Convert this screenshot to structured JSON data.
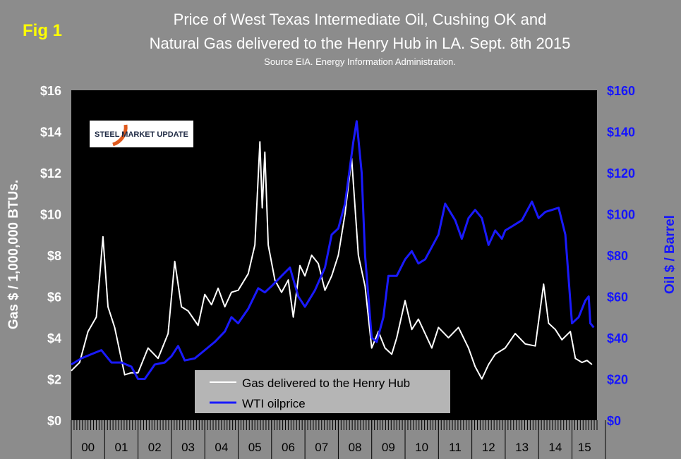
{
  "fig_label": "Fig 1",
  "title_line1": "Price of West Texas Intermediate Oil, Cushing OK and",
  "title_line2": "Natural Gas delivered to the Henry Hub in LA. Sept. 8th 2015",
  "source": "Source EIA. Energy Information Administration.",
  "logo": {
    "text": "STEEL MARKET UPDATE",
    "accent": "#e05a1e"
  },
  "colors": {
    "background": "#8c8c8c",
    "plot": "#000000",
    "gas": "#ffffff",
    "oil": "#1a1aff",
    "fig_label": "#ffff00",
    "right_axis": "#1515ff"
  },
  "chart_data": {
    "type": "line",
    "title": "Price of West Texas Intermediate Oil, Cushing OK and Natural Gas delivered to the Henry Hub in LA. Sept. 8th 2015",
    "xlabel": "",
    "ylabel_left": "Gas $ / 1,000,000 BTUs.",
    "ylabel_right": "Oil $ / Barrel",
    "ylim_left": [
      0,
      16
    ],
    "ylim_right": [
      0,
      160
    ],
    "yticks_left": [
      "$0",
      "$2",
      "$4",
      "$6",
      "$8",
      "$10",
      "$12",
      "$14",
      "$16"
    ],
    "yticks_right": [
      "$0",
      "$20",
      "$40",
      "$60",
      "$80",
      "$100",
      "$120",
      "$140",
      "$160"
    ],
    "x_categories": [
      "00",
      "01",
      "02",
      "03",
      "04",
      "05",
      "06",
      "07",
      "08",
      "09",
      "10",
      "11",
      "12",
      "13",
      "14",
      "15"
    ],
    "x_range": [
      2000.0,
      2015.75
    ],
    "grid": false,
    "legend_position": "bottom-center",
    "series": [
      {
        "name": "Gas delivered to the Henry Hub",
        "axis": "left",
        "color": "#ffffff",
        "points": [
          [
            2000.0,
            2.4
          ],
          [
            2000.25,
            2.8
          ],
          [
            2000.5,
            4.3
          ],
          [
            2000.75,
            5.0
          ],
          [
            2000.95,
            8.9
          ],
          [
            2001.1,
            5.5
          ],
          [
            2001.3,
            4.5
          ],
          [
            2001.6,
            2.2
          ],
          [
            2001.8,
            2.3
          ],
          [
            2002.0,
            2.3
          ],
          [
            2002.3,
            3.5
          ],
          [
            2002.6,
            3.0
          ],
          [
            2002.9,
            4.2
          ],
          [
            2003.1,
            7.7
          ],
          [
            2003.3,
            5.5
          ],
          [
            2003.5,
            5.3
          ],
          [
            2003.8,
            4.6
          ],
          [
            2004.0,
            6.1
          ],
          [
            2004.2,
            5.6
          ],
          [
            2004.4,
            6.4
          ],
          [
            2004.6,
            5.5
          ],
          [
            2004.8,
            6.2
          ],
          [
            2005.0,
            6.3
          ],
          [
            2005.3,
            7.1
          ],
          [
            2005.5,
            8.5
          ],
          [
            2005.65,
            13.5
          ],
          [
            2005.72,
            10.3
          ],
          [
            2005.8,
            13.0
          ],
          [
            2005.9,
            8.5
          ],
          [
            2006.1,
            6.8
          ],
          [
            2006.3,
            6.2
          ],
          [
            2006.5,
            6.8
          ],
          [
            2006.65,
            5.0
          ],
          [
            2006.85,
            7.5
          ],
          [
            2007.0,
            7.0
          ],
          [
            2007.2,
            8.0
          ],
          [
            2007.4,
            7.6
          ],
          [
            2007.6,
            6.3
          ],
          [
            2007.8,
            7.0
          ],
          [
            2008.0,
            8.0
          ],
          [
            2008.2,
            10.0
          ],
          [
            2008.4,
            12.7
          ],
          [
            2008.6,
            8.0
          ],
          [
            2008.8,
            6.5
          ],
          [
            2009.0,
            3.5
          ],
          [
            2009.2,
            4.3
          ],
          [
            2009.4,
            3.5
          ],
          [
            2009.6,
            3.2
          ],
          [
            2009.75,
            4.0
          ],
          [
            2010.0,
            5.8
          ],
          [
            2010.2,
            4.4
          ],
          [
            2010.4,
            4.9
          ],
          [
            2010.6,
            4.2
          ],
          [
            2010.8,
            3.5
          ],
          [
            2011.0,
            4.5
          ],
          [
            2011.3,
            4.0
          ],
          [
            2011.6,
            4.5
          ],
          [
            2011.9,
            3.5
          ],
          [
            2012.1,
            2.6
          ],
          [
            2012.3,
            2.0
          ],
          [
            2012.5,
            2.7
          ],
          [
            2012.7,
            3.2
          ],
          [
            2013.0,
            3.5
          ],
          [
            2013.3,
            4.2
          ],
          [
            2013.6,
            3.7
          ],
          [
            2013.9,
            3.6
          ],
          [
            2014.15,
            6.6
          ],
          [
            2014.3,
            4.7
          ],
          [
            2014.5,
            4.4
          ],
          [
            2014.7,
            3.9
          ],
          [
            2014.95,
            4.3
          ],
          [
            2015.1,
            3.0
          ],
          [
            2015.3,
            2.8
          ],
          [
            2015.45,
            2.9
          ],
          [
            2015.6,
            2.7
          ]
        ]
      },
      {
        "name": "WTI oilprice",
        "axis": "right",
        "color": "#1a1aff",
        "points": [
          [
            2000.0,
            27
          ],
          [
            2000.3,
            30
          ],
          [
            2000.6,
            32
          ],
          [
            2000.9,
            34
          ],
          [
            2001.2,
            28
          ],
          [
            2001.5,
            28
          ],
          [
            2001.8,
            26
          ],
          [
            2002.0,
            20
          ],
          [
            2002.2,
            20
          ],
          [
            2002.5,
            27
          ],
          [
            2002.8,
            28
          ],
          [
            2003.0,
            31
          ],
          [
            2003.2,
            36
          ],
          [
            2003.4,
            29
          ],
          [
            2003.7,
            30
          ],
          [
            2004.0,
            34
          ],
          [
            2004.3,
            38
          ],
          [
            2004.6,
            43
          ],
          [
            2004.8,
            50
          ],
          [
            2005.0,
            47
          ],
          [
            2005.3,
            54
          ],
          [
            2005.6,
            64
          ],
          [
            2005.8,
            62
          ],
          [
            2006.0,
            65
          ],
          [
            2006.3,
            70
          ],
          [
            2006.55,
            74
          ],
          [
            2006.8,
            60
          ],
          [
            2007.0,
            55
          ],
          [
            2007.3,
            63
          ],
          [
            2007.6,
            74
          ],
          [
            2007.8,
            90
          ],
          [
            2008.0,
            93
          ],
          [
            2008.2,
            105
          ],
          [
            2008.45,
            135
          ],
          [
            2008.55,
            145
          ],
          [
            2008.7,
            120
          ],
          [
            2008.8,
            80
          ],
          [
            2008.9,
            60
          ],
          [
            2009.0,
            40
          ],
          [
            2009.15,
            38
          ],
          [
            2009.35,
            50
          ],
          [
            2009.5,
            70
          ],
          [
            2009.75,
            70
          ],
          [
            2010.0,
            78
          ],
          [
            2010.2,
            82
          ],
          [
            2010.4,
            76
          ],
          [
            2010.6,
            78
          ],
          [
            2010.8,
            84
          ],
          [
            2011.0,
            90
          ],
          [
            2011.2,
            105
          ],
          [
            2011.5,
            97
          ],
          [
            2011.7,
            88
          ],
          [
            2011.9,
            98
          ],
          [
            2012.1,
            102
          ],
          [
            2012.3,
            98
          ],
          [
            2012.5,
            85
          ],
          [
            2012.7,
            92
          ],
          [
            2012.9,
            88
          ],
          [
            2013.0,
            92
          ],
          [
            2013.2,
            94
          ],
          [
            2013.5,
            97
          ],
          [
            2013.8,
            106
          ],
          [
            2014.0,
            98
          ],
          [
            2014.2,
            101
          ],
          [
            2014.4,
            102
          ],
          [
            2014.6,
            103
          ],
          [
            2014.8,
            90
          ],
          [
            2015.0,
            47
          ],
          [
            2015.2,
            50
          ],
          [
            2015.4,
            58
          ],
          [
            2015.5,
            60
          ],
          [
            2015.55,
            47
          ],
          [
            2015.65,
            45
          ]
        ]
      }
    ]
  }
}
